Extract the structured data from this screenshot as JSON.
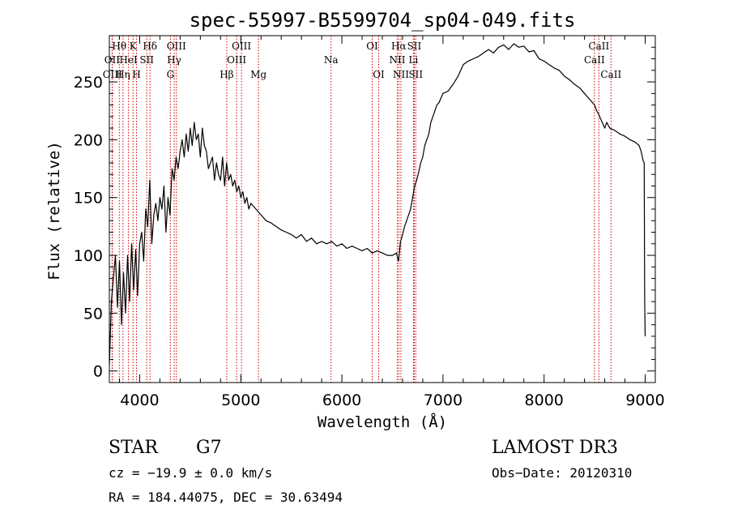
{
  "chart_data": {
    "type": "line",
    "title": "spec-55997-B5599704_sp04-049.fits",
    "xlabel": "Wavelength (Å)",
    "ylabel": "Flux (relative)",
    "xlim": [
      3700,
      9100
    ],
    "ylim": [
      -10,
      290
    ],
    "xticks": [
      4000,
      5000,
      6000,
      7000,
      8000,
      9000
    ],
    "yticks": [
      0,
      50,
      100,
      150,
      200,
      250
    ],
    "x_minor_step": 200,
    "y_minor_step": 10,
    "series": [
      {
        "name": "flux",
        "x": [
          3700,
          3720,
          3740,
          3760,
          3780,
          3800,
          3820,
          3840,
          3860,
          3880,
          3900,
          3920,
          3940,
          3960,
          3980,
          4000,
          4020,
          4040,
          4060,
          4080,
          4100,
          4120,
          4140,
          4160,
          4180,
          4200,
          4220,
          4240,
          4260,
          4280,
          4300,
          4320,
          4340,
          4360,
          4380,
          4400,
          4420,
          4440,
          4460,
          4480,
          4500,
          4520,
          4540,
          4560,
          4580,
          4600,
          4620,
          4640,
          4660,
          4680,
          4700,
          4720,
          4740,
          4760,
          4780,
          4800,
          4820,
          4840,
          4860,
          4880,
          4900,
          4920,
          4940,
          4960,
          4980,
          5000,
          5020,
          5040,
          5060,
          5080,
          5100,
          5150,
          5200,
          5250,
          5300,
          5350,
          5400,
          5450,
          5500,
          5550,
          5600,
          5650,
          5700,
          5750,
          5800,
          5850,
          5900,
          5950,
          6000,
          6050,
          6100,
          6150,
          6200,
          6250,
          6300,
          6350,
          6400,
          6450,
          6500,
          6540,
          6560,
          6580,
          6600,
          6620,
          6640,
          6660,
          6680,
          6700,
          6720,
          6740,
          6760,
          6780,
          6800,
          6820,
          6840,
          6860,
          6880,
          6900,
          6920,
          6940,
          6960,
          6980,
          7000,
          7050,
          7100,
          7150,
          7200,
          7250,
          7300,
          7350,
          7400,
          7450,
          7500,
          7550,
          7600,
          7650,
          7700,
          7750,
          7800,
          7850,
          7900,
          7950,
          8000,
          8050,
          8100,
          8150,
          8200,
          8250,
          8300,
          8350,
          8400,
          8450,
          8500,
          8520,
          8540,
          8560,
          8600,
          8620,
          8650,
          8700,
          8750,
          8800,
          8850,
          8900,
          8940,
          8960,
          8980,
          8990,
          8995,
          9000
        ],
        "y": [
          5,
          60,
          80,
          100,
          55,
          95,
          40,
          85,
          50,
          100,
          60,
          110,
          70,
          105,
          65,
          110,
          120,
          95,
          140,
          125,
          165,
          110,
          135,
          145,
          130,
          150,
          140,
          160,
          120,
          150,
          135,
          175,
          165,
          185,
          175,
          190,
          200,
          185,
          205,
          190,
          210,
          195,
          215,
          200,
          205,
          185,
          210,
          195,
          190,
          175,
          180,
          185,
          165,
          180,
          170,
          165,
          185,
          160,
          180,
          165,
          170,
          160,
          165,
          155,
          160,
          150,
          155,
          145,
          150,
          140,
          145,
          140,
          135,
          130,
          128,
          125,
          122,
          120,
          118,
          115,
          118,
          112,
          115,
          110,
          112,
          110,
          112,
          108,
          110,
          106,
          108,
          106,
          104,
          106,
          102,
          104,
          102,
          100,
          100,
          102,
          95,
          112,
          118,
          125,
          130,
          135,
          140,
          150,
          160,
          165,
          172,
          180,
          185,
          195,
          200,
          205,
          215,
          220,
          225,
          230,
          232,
          236,
          240,
          242,
          248,
          255,
          265,
          268,
          270,
          272,
          275,
          278,
          275,
          280,
          282,
          278,
          283,
          280,
          281,
          276,
          277,
          270,
          268,
          265,
          262,
          260,
          255,
          252,
          248,
          245,
          240,
          235,
          230,
          225,
          222,
          218,
          210,
          215,
          210,
          208,
          205,
          203,
          200,
          198,
          195,
          190,
          182,
          180,
          60,
          30
        ]
      }
    ],
    "spectral_lines": [
      {
        "label": "Hθ",
        "x": 3798,
        "row": 0
      },
      {
        "label": "OII",
        "x": 3727,
        "row": 1
      },
      {
        "label": "OIII",
        "x": 3730,
        "row": 2
      },
      {
        "label": "Hη",
        "x": 3835,
        "row": 2
      },
      {
        "label": "HeI",
        "x": 3889,
        "row": 1
      },
      {
        "label": "K",
        "x": 3934,
        "row": 0
      },
      {
        "label": "SII",
        "x": 4070,
        "row": 1
      },
      {
        "label": "H",
        "x": 3969,
        "row": 2
      },
      {
        "label": "Hδ",
        "x": 4102,
        "row": 0
      },
      {
        "label": "OIII",
        "x": 4363,
        "row": 0
      },
      {
        "label": "Hγ",
        "x": 4341,
        "row": 1
      },
      {
        "label": "G",
        "x": 4304,
        "row": 2
      },
      {
        "label": "Hβ",
        "x": 4861,
        "row": 2
      },
      {
        "label": "OIII",
        "x": 5007,
        "row": 0
      },
      {
        "label": "OIII",
        "x": 4959,
        "row": 1
      },
      {
        "label": "Mg",
        "x": 5175,
        "row": 2
      },
      {
        "label": "Na",
        "x": 5893,
        "row": 1
      },
      {
        "label": "OI",
        "x": 6300,
        "row": 0
      },
      {
        "label": "OI",
        "x": 6364,
        "row": 2
      },
      {
        "label": "Hα",
        "x": 6563,
        "row": 0
      },
      {
        "label": "NII",
        "x": 6548,
        "row": 1
      },
      {
        "label": "NII",
        "x": 6584,
        "row": 2
      },
      {
        "label": "SII",
        "x": 6716,
        "row": 0
      },
      {
        "label": "Li",
        "x": 6708,
        "row": 1
      },
      {
        "label": "SII",
        "x": 6731,
        "row": 2
      },
      {
        "label": "CaII",
        "x": 8542,
        "row": 0
      },
      {
        "label": "CaII",
        "x": 8498,
        "row": 1
      },
      {
        "label": "CaII",
        "x": 8662,
        "row": 2
      }
    ]
  },
  "info": {
    "object_class": "STAR",
    "subclass": "G7",
    "survey": "LAMOST DR3",
    "cz": "cz = −19.9 ± 0.0 km/s",
    "obs_date": "Obs−Date: 20120310",
    "coords": "RA = 184.44075, DEC =  30.63494"
  },
  "colors": {
    "line_marker": "#cc0000",
    "spectrum": "#000000",
    "axes": "#000000"
  }
}
